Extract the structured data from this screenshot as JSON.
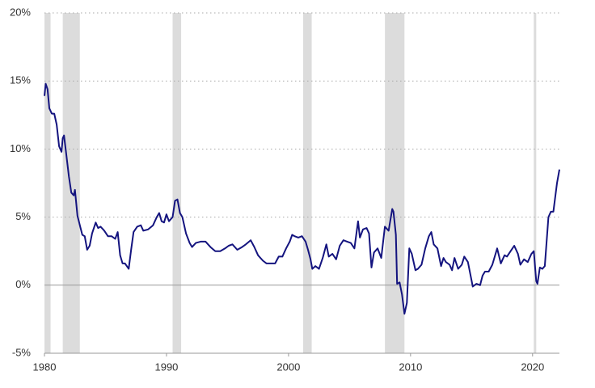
{
  "chart_data": {
    "type": "line",
    "x": [
      1980.0,
      1980.1,
      1980.25,
      1980.4,
      1980.6,
      1980.8,
      1981.0,
      1981.2,
      1981.4,
      1981.5,
      1981.6,
      1981.8,
      1982.0,
      1982.2,
      1982.4,
      1982.5,
      1982.7,
      1982.9,
      1983.1,
      1983.3,
      1983.5,
      1983.7,
      1983.9,
      1984.2,
      1984.4,
      1984.6,
      1984.9,
      1985.2,
      1985.5,
      1985.8,
      1986.0,
      1986.2,
      1986.4,
      1986.6,
      1986.9,
      1987.1,
      1987.3,
      1987.6,
      1987.9,
      1988.1,
      1988.5,
      1988.9,
      1989.2,
      1989.4,
      1989.6,
      1989.8,
      1990.0,
      1990.2,
      1990.5,
      1990.7,
      1990.9,
      1991.1,
      1991.3,
      1991.6,
      1991.9,
      1992.1,
      1992.4,
      1992.8,
      1993.2,
      1993.6,
      1994.0,
      1994.4,
      1994.8,
      1995.1,
      1995.4,
      1995.8,
      1996.2,
      1996.5,
      1996.9,
      1997.2,
      1997.5,
      1997.9,
      1998.2,
      1998.6,
      1998.9,
      1999.2,
      1999.5,
      1999.8,
      2000.1,
      2000.3,
      2000.5,
      2000.8,
      2001.1,
      2001.4,
      2001.6,
      2001.8,
      2001.95,
      2002.2,
      2002.5,
      2002.8,
      2003.1,
      2003.3,
      2003.6,
      2003.9,
      2004.2,
      2004.5,
      2004.8,
      2005.1,
      2005.4,
      2005.7,
      2005.85,
      2006.1,
      2006.4,
      2006.6,
      2006.8,
      2007.0,
      2007.3,
      2007.6,
      2007.9,
      2008.2,
      2008.5,
      2008.6,
      2008.8,
      2008.9,
      2009.1,
      2009.3,
      2009.5,
      2009.7,
      2009.9,
      2010.1,
      2010.4,
      2010.6,
      2010.9,
      2011.2,
      2011.5,
      2011.7,
      2011.9,
      2012.2,
      2012.5,
      2012.7,
      2012.9,
      2013.2,
      2013.4,
      2013.6,
      2013.9,
      2014.2,
      2014.4,
      2014.7,
      2014.9,
      2015.1,
      2015.4,
      2015.7,
      2015.9,
      2016.1,
      2016.4,
      2016.7,
      2016.9,
      2017.1,
      2017.4,
      2017.7,
      2017.9,
      2018.2,
      2018.5,
      2018.8,
      2019.0,
      2019.3,
      2019.6,
      2019.9,
      2020.1,
      2020.3,
      2020.4,
      2020.6,
      2020.8,
      2021.0,
      2021.1,
      2021.3,
      2021.5,
      2021.7,
      2021.9,
      2022.0,
      2022.2
    ],
    "series": [
      {
        "color": "#14147f",
        "values": [
          13.9,
          14.8,
          14.4,
          13.0,
          12.6,
          12.6,
          11.8,
          10.2,
          9.8,
          10.8,
          11.0,
          9.5,
          8.0,
          6.8,
          6.6,
          7.0,
          5.1,
          4.4,
          3.7,
          3.6,
          2.6,
          2.9,
          3.8,
          4.6,
          4.2,
          4.3,
          4.0,
          3.6,
          3.6,
          3.4,
          3.9,
          2.2,
          1.6,
          1.6,
          1.2,
          2.6,
          3.9,
          4.3,
          4.4,
          4.0,
          4.1,
          4.4,
          5.0,
          5.3,
          4.7,
          4.6,
          5.2,
          4.7,
          5.0,
          6.2,
          6.3,
          5.3,
          5.0,
          3.8,
          3.1,
          2.8,
          3.1,
          3.2,
          3.2,
          2.8,
          2.5,
          2.5,
          2.7,
          2.9,
          3.0,
          2.6,
          2.8,
          3.0,
          3.3,
          2.8,
          2.2,
          1.8,
          1.6,
          1.6,
          1.6,
          2.1,
          2.1,
          2.7,
          3.2,
          3.7,
          3.6,
          3.5,
          3.6,
          3.2,
          2.6,
          1.9,
          1.2,
          1.4,
          1.2,
          2.0,
          3.0,
          2.1,
          2.3,
          1.9,
          2.9,
          3.3,
          3.2,
          3.1,
          2.7,
          4.7,
          3.5,
          4.1,
          4.2,
          3.8,
          1.3,
          2.4,
          2.7,
          2.0,
          4.3,
          4.0,
          5.6,
          5.4,
          3.7,
          0.1,
          0.2,
          -0.7,
          -2.1,
          -1.3,
          2.7,
          2.3,
          1.1,
          1.2,
          1.5,
          2.7,
          3.6,
          3.9,
          3.0,
          2.7,
          1.4,
          2.0,
          1.7,
          1.5,
          1.1,
          2.0,
          1.2,
          1.5,
          2.1,
          1.7,
          0.8,
          -0.1,
          0.1,
          0.0,
          0.7,
          1.0,
          1.0,
          1.5,
          2.1,
          2.7,
          1.6,
          2.2,
          2.1,
          2.5,
          2.9,
          2.3,
          1.5,
          1.9,
          1.7,
          2.3,
          2.5,
          0.3,
          0.1,
          1.3,
          1.2,
          1.4,
          2.6,
          5.0,
          5.4,
          5.4,
          6.8,
          7.5,
          8.5
        ]
      }
    ],
    "recessions": [
      [
        1980.0,
        1980.5
      ],
      [
        1981.5,
        1982.9
      ],
      [
        1990.5,
        1991.2
      ],
      [
        2001.2,
        2001.9
      ],
      [
        2007.9,
        2009.5
      ],
      [
        2020.1,
        2020.3
      ]
    ],
    "recession_color": "#dcdcdc",
    "xlim": [
      1980,
      2022.2
    ],
    "xticks": [
      1980,
      1990,
      2000,
      2010,
      2020
    ],
    "ylim": [
      -5,
      20
    ],
    "yticks": [
      {
        "value": -5,
        "label": "-5%"
      },
      {
        "value": 0,
        "label": "0%"
      },
      {
        "value": 5,
        "label": "5%"
      },
      {
        "value": 10,
        "label": "10%"
      },
      {
        "value": 15,
        "label": "15%"
      },
      {
        "value": 20,
        "label": "20%"
      }
    ],
    "grid": true
  }
}
